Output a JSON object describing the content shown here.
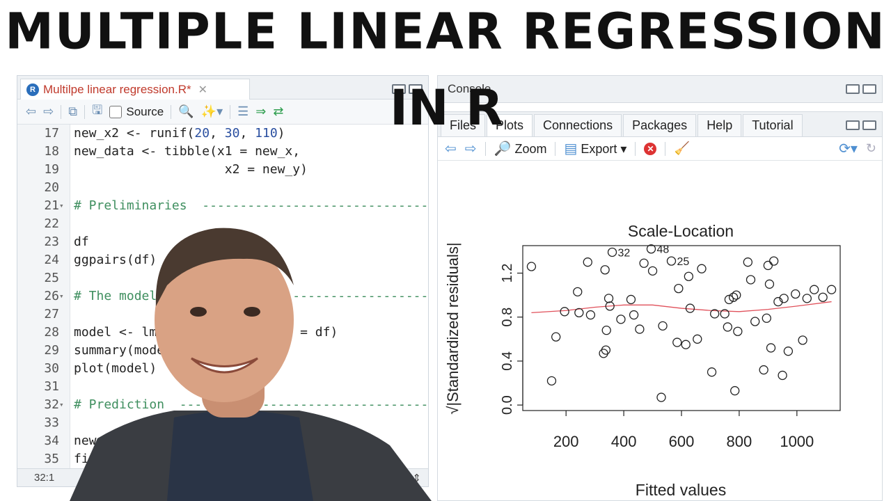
{
  "title": {
    "main": "MULTIPLE LINEAR REGRESSION",
    "sub": "IN R"
  },
  "editor": {
    "file_tab": "Multilpe linear regression.R*",
    "toolbar": {
      "source_label": "Source"
    },
    "lines": [
      {
        "n": "17",
        "fold": "",
        "code": [
          {
            "t": "new_x2 <- runif(",
            "c": ""
          },
          {
            "t": "20",
            "c": "num"
          },
          {
            "t": ", ",
            "c": ""
          },
          {
            "t": "30",
            "c": "num"
          },
          {
            "t": ", ",
            "c": ""
          },
          {
            "t": "110",
            "c": "num"
          },
          {
            "t": ")",
            "c": ""
          }
        ]
      },
      {
        "n": "18",
        "fold": "",
        "code": [
          {
            "t": "new_data <- tibble(x1 = new_x,",
            "c": ""
          }
        ]
      },
      {
        "n": "19",
        "fold": "",
        "code": [
          {
            "t": "                    x2 = new_y)",
            "c": ""
          }
        ]
      },
      {
        "n": "20",
        "fold": "",
        "code": []
      },
      {
        "n": "21",
        "fold": "▾",
        "code": [
          {
            "t": "# Preliminaries  ---------------------------------",
            "c": "cm"
          }
        ]
      },
      {
        "n": "22",
        "fold": "",
        "code": []
      },
      {
        "n": "23",
        "fold": "",
        "code": [
          {
            "t": "df",
            "c": ""
          }
        ]
      },
      {
        "n": "24",
        "fold": "",
        "code": [
          {
            "t": "ggpairs(df)",
            "c": ""
          }
        ]
      },
      {
        "n": "25",
        "fold": "",
        "code": []
      },
      {
        "n": "26",
        "fold": "▾",
        "code": [
          {
            "t": "# The model  -------------------------------------",
            "c": "cm"
          }
        ]
      },
      {
        "n": "27",
        "fold": "",
        "code": []
      },
      {
        "n": "28",
        "fold": "",
        "code": [
          {
            "t": "model <- lm(y ~ x1 + x2, data = df)",
            "c": ""
          }
        ]
      },
      {
        "n": "29",
        "fold": "",
        "code": [
          {
            "t": "summary(model)",
            "c": ""
          }
        ]
      },
      {
        "n": "30",
        "fold": "",
        "code": [
          {
            "t": "plot(model)",
            "c": ""
          }
        ]
      },
      {
        "n": "31",
        "fold": "",
        "code": []
      },
      {
        "n": "32",
        "fold": "▾",
        "code": [
          {
            "t": "# Prediction  ------------------------------------",
            "c": "cm"
          }
        ]
      },
      {
        "n": "33",
        "fold": "",
        "code": []
      },
      {
        "n": "34",
        "fold": "",
        "code": [
          {
            "t": "new_data",
            "c": ""
          }
        ]
      },
      {
        "n": "35",
        "fold": "",
        "code": [
          {
            "t": "fitted",
            "c": ""
          }
        ]
      }
    ],
    "status": {
      "position": "32:1",
      "file_type": "R Script"
    }
  },
  "right_pane": {
    "console_label": "Console",
    "tabs": [
      "Files",
      "Plots",
      "Connections",
      "Packages",
      "Help",
      "Tutorial"
    ],
    "active_tab": "Plots",
    "toolbar": {
      "zoom": "Zoom",
      "export": "Export"
    }
  },
  "chart_data": {
    "type": "scatter",
    "title": "Scale-Location",
    "xlabel": "Fitted values",
    "ylabel": "√|Standardized residuals|",
    "xlim": [
      50,
      1150
    ],
    "ylim": [
      -0.05,
      1.45
    ],
    "xticks": [
      "200",
      "400",
      "600",
      "800",
      "1000"
    ],
    "yticks": [
      "0.0",
      "0.4",
      "0.8",
      "1.2"
    ],
    "points": [
      [
        80,
        1.26
      ],
      [
        150,
        0.22
      ],
      [
        165,
        0.62
      ],
      [
        195,
        0.85
      ],
      [
        240,
        1.03
      ],
      [
        245,
        0.84
      ],
      [
        275,
        1.3
      ],
      [
        285,
        0.82
      ],
      [
        330,
        0.47
      ],
      [
        335,
        1.23
      ],
      [
        338,
        0.5
      ],
      [
        340,
        0.68
      ],
      [
        348,
        0.97
      ],
      [
        352,
        0.9
      ],
      [
        360,
        1.39
      ],
      [
        390,
        0.78
      ],
      [
        425,
        0.96
      ],
      [
        435,
        0.82
      ],
      [
        455,
        0.69
      ],
      [
        470,
        1.29
      ],
      [
        495,
        1.42
      ],
      [
        500,
        1.22
      ],
      [
        530,
        0.07
      ],
      [
        535,
        0.72
      ],
      [
        565,
        1.31
      ],
      [
        585,
        0.57
      ],
      [
        590,
        1.06
      ],
      [
        615,
        0.55
      ],
      [
        625,
        1.17
      ],
      [
        630,
        0.88
      ],
      [
        655,
        0.6
      ],
      [
        670,
        1.24
      ],
      [
        705,
        0.3
      ],
      [
        715,
        0.83
      ],
      [
        750,
        0.83
      ],
      [
        760,
        0.71
      ],
      [
        765,
        0.96
      ],
      [
        780,
        0.98
      ],
      [
        785,
        0.13
      ],
      [
        790,
        1.0
      ],
      [
        795,
        0.67
      ],
      [
        830,
        1.3
      ],
      [
        840,
        1.14
      ],
      [
        855,
        0.76
      ],
      [
        885,
        0.32
      ],
      [
        895,
        0.79
      ],
      [
        900,
        1.27
      ],
      [
        905,
        1.1
      ],
      [
        910,
        0.52
      ],
      [
        920,
        1.31
      ],
      [
        935,
        0.94
      ],
      [
        950,
        0.27
      ],
      [
        955,
        0.97
      ],
      [
        970,
        0.49
      ],
      [
        995,
        1.01
      ],
      [
        1020,
        0.59
      ],
      [
        1035,
        0.97
      ],
      [
        1060,
        1.05
      ],
      [
        1090,
        0.98
      ],
      [
        1120,
        1.05
      ]
    ],
    "labeled_points": [
      {
        "label": "32",
        "x": 360,
        "y": 1.39
      },
      {
        "label": "48",
        "x": 495,
        "y": 1.42
      },
      {
        "label": "25",
        "x": 565,
        "y": 1.31
      }
    ],
    "smoother": [
      [
        80,
        0.84
      ],
      [
        200,
        0.86
      ],
      [
        300,
        0.89
      ],
      [
        400,
        0.91
      ],
      [
        500,
        0.91
      ],
      [
        600,
        0.88
      ],
      [
        700,
        0.86
      ],
      [
        800,
        0.85
      ],
      [
        900,
        0.87
      ],
      [
        1000,
        0.9
      ],
      [
        1120,
        0.94
      ]
    ],
    "colors": {
      "points": "#222222",
      "smoother": "#e0505a"
    }
  }
}
